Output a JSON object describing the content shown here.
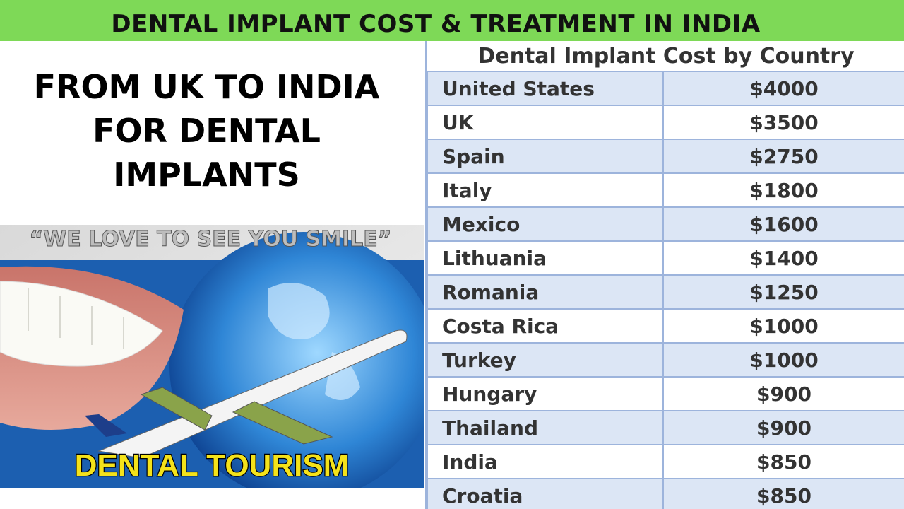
{
  "banner": {
    "title": "DENTAL IMPLANT COST & TREATMENT IN INDIA"
  },
  "headline": [
    "FROM UK TO INDIA",
    "FOR DENTAL",
    "IMPLANTS"
  ],
  "image": {
    "tagline": "“WE LOVE TO SEE YOU SMILE”",
    "caption": "DENTAL TOURISM"
  },
  "table": {
    "title": "Dental Implant Cost by Country",
    "rows": [
      [
        "United States",
        "$4000"
      ],
      [
        "UK",
        "$3500"
      ],
      [
        "Spain",
        "$2750"
      ],
      [
        "Italy",
        "$1800"
      ],
      [
        "Mexico",
        "$1600"
      ],
      [
        "Lithuania",
        "$1400"
      ],
      [
        "Romania",
        "$1250"
      ],
      [
        "Costa Rica",
        "$1000"
      ],
      [
        "Turkey",
        "$1000"
      ],
      [
        "Hungary",
        "$900"
      ],
      [
        "Thailand",
        "$900"
      ],
      [
        "India",
        "$850"
      ],
      [
        "Croatia",
        "$850"
      ]
    ]
  }
}
